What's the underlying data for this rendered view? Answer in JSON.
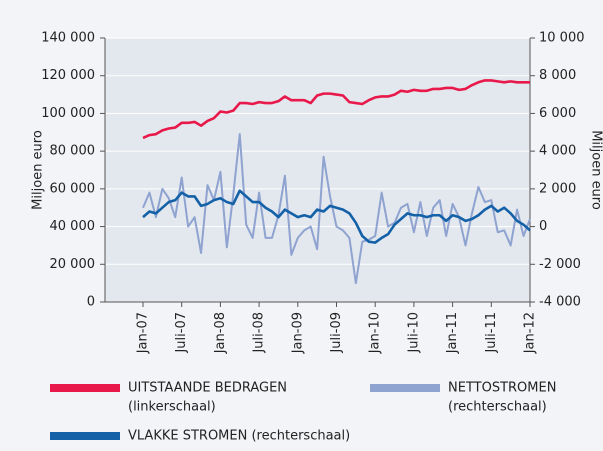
{
  "chart_data": {
    "type": "line",
    "y_label": "Miljoen euro",
    "y2_label": "Miljoen euro",
    "categories": [
      "Jan-07",
      null,
      null,
      null,
      null,
      null,
      "Juli-07",
      null,
      null,
      null,
      null,
      null,
      "Jan-08",
      null,
      null,
      null,
      null,
      null,
      "Juli-08",
      null,
      null,
      null,
      null,
      null,
      "Jan-09",
      null,
      null,
      null,
      null,
      null,
      "Juli-09",
      null,
      null,
      null,
      null,
      null,
      "Jan-10",
      null,
      null,
      null,
      null,
      null,
      "Juli-10",
      null,
      null,
      null,
      null,
      null,
      "Jan-11",
      null,
      null,
      null,
      null,
      null,
      "Juli-11",
      null,
      null,
      null,
      null,
      null,
      "Jan-12"
    ],
    "ylim": [
      0,
      140000
    ],
    "yticks": [
      0,
      {
        "value": 20000,
        "label": "20 000"
      },
      {
        "value": 40000,
        "label": "40 000"
      },
      {
        "value": 60000,
        "label": "60 000"
      },
      {
        "value": 80000,
        "label": "80 000"
      },
      {
        "value": 100000,
        "label": "100 000"
      },
      {
        "value": 120000,
        "label": "120 000"
      },
      {
        "value": 140000,
        "label": "140 000"
      }
    ],
    "y2lim": [
      -4000,
      10000
    ],
    "y2ticks": [
      {
        "value": -4000,
        "label": "-4 000"
      },
      {
        "value": -2000,
        "label": "-2 000"
      },
      0,
      {
        "value": 2000,
        "label": "2 000"
      },
      {
        "value": 4000,
        "label": "4 000"
      },
      {
        "value": 6000,
        "label": "6 000"
      },
      {
        "value": 8000,
        "label": "8 000"
      },
      {
        "value": 10000,
        "label": "10 000"
      }
    ],
    "grid": true,
    "series": [
      {
        "name": "UITSTAANDE BEDRAGEN",
        "note": "(linkerschaal)",
        "color": "#e8194a",
        "axis": "y",
        "values": [
          87000,
          88500,
          89000,
          91000,
          92000,
          92500,
          95000,
          95000,
          95500,
          93500,
          96000,
          97500,
          101000,
          100500,
          101500,
          105500,
          105500,
          105000,
          106000,
          105500,
          105500,
          106500,
          109000,
          107000,
          107000,
          107000,
          105500,
          109500,
          110500,
          110500,
          110000,
          109500,
          106000,
          105500,
          105000,
          107000,
          108500,
          109000,
          109000,
          110000,
          112000,
          111500,
          112500,
          112000,
          112000,
          113000,
          113000,
          113500,
          113500,
          112500,
          113000,
          115000,
          116500,
          117500,
          117500,
          117000,
          116500,
          117000,
          116500,
          116500,
          116500
        ]
      },
      {
        "name": "NETTOSTROMEN",
        "note": "(rechterschaal)",
        "color": "#8fa3d0",
        "axis": "y2",
        "values": [
          1000,
          1800,
          500,
          2000,
          1500,
          500,
          2600,
          0,
          500,
          -1400,
          2200,
          1400,
          2900,
          -1100,
          1700,
          4900,
          100,
          -600,
          1800,
          -600,
          -600,
          600,
          2700,
          -1500,
          -600,
          -200,
          0,
          -1200,
          3700,
          1600,
          0,
          -200,
          -600,
          -3000,
          -800,
          -700,
          -500,
          1800,
          0,
          200,
          1000,
          1200,
          -300,
          1300,
          -500,
          1000,
          1400,
          -500,
          1200,
          500,
          -1000,
          700,
          2100,
          1300,
          1400,
          -300,
          -200,
          -1000,
          900,
          -500,
          400
        ]
      },
      {
        "name": "VLAKKE STROMEN (rechterschaal)",
        "color": "#1461a8",
        "axis": "y2",
        "values": [
          500,
          800,
          700,
          1000,
          1300,
          1400,
          1800,
          1600,
          1600,
          1100,
          1200,
          1400,
          1500,
          1300,
          1200,
          1900,
          1600,
          1300,
          1300,
          1000,
          800,
          500,
          900,
          700,
          500,
          600,
          500,
          900,
          800,
          1100,
          1000,
          900,
          700,
          200,
          -500,
          -800,
          -850,
          -600,
          -400,
          100,
          400,
          700,
          600,
          600,
          500,
          600,
          600,
          300,
          600,
          500,
          300,
          400,
          600,
          900,
          1100,
          800,
          1000,
          700,
          300,
          100,
          -200
        ]
      }
    ]
  }
}
